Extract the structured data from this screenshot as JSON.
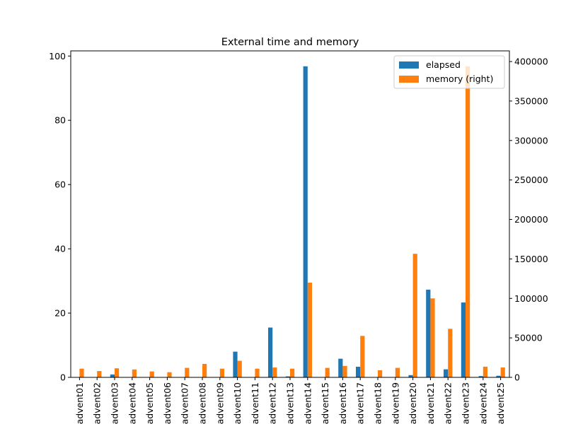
{
  "chart_data": {
    "type": "bar",
    "title": "External time and memory",
    "categories": [
      "advent01",
      "advent02",
      "advent03",
      "advent04",
      "advent05",
      "advent06",
      "advent07",
      "advent08",
      "advent09",
      "advent10",
      "advent11",
      "advent12",
      "advent13",
      "advent14",
      "advent15",
      "advent16",
      "advent17",
      "advent18",
      "advent19",
      "advent20",
      "advent21",
      "advent22",
      "advent23",
      "advent24",
      "advent25"
    ],
    "series": [
      {
        "name": "elapsed",
        "axis": "left",
        "color": "#1f77b4",
        "values": [
          0.1,
          0.1,
          0.9,
          0.1,
          0.1,
          0.1,
          0.1,
          0.1,
          0.1,
          8.0,
          0.1,
          15.5,
          0.3,
          96.8,
          0.1,
          5.8,
          3.3,
          0.1,
          0.1,
          0.7,
          27.3,
          2.5,
          23.3,
          0.4,
          0.5
        ]
      },
      {
        "name": "memory (right)",
        "axis": "right",
        "color": "#ff7f0e",
        "values": [
          11000,
          8000,
          11500,
          10000,
          7500,
          6500,
          12000,
          17000,
          11000,
          21000,
          11000,
          12500,
          11000,
          120000,
          12000,
          14500,
          52500,
          9000,
          12000,
          156500,
          100000,
          61500,
          394000,
          13500,
          12500
        ]
      }
    ],
    "ylim": [
      0,
      101.6
    ],
    "y_ticks": [
      "0",
      "20",
      "40",
      "60",
      "80",
      "100"
    ],
    "y2lim": [
      0,
      413500
    ],
    "y2_ticks": [
      "0",
      "50000",
      "100000",
      "150000",
      "200000",
      "250000",
      "300000",
      "350000",
      "400000"
    ],
    "legend_position": "top-right",
    "grid": false
  }
}
